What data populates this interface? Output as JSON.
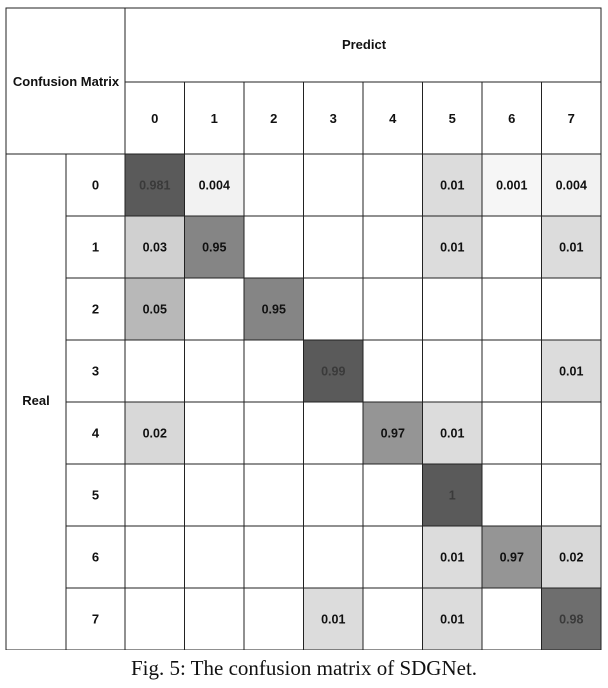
{
  "chart_data": {
    "type": "heatmap",
    "corner_label": "Confusion Matrix",
    "col_group_label": "Predict",
    "row_group_label": "Real",
    "col_labels": [
      "0",
      "1",
      "2",
      "3",
      "4",
      "5",
      "6",
      "7"
    ],
    "row_labels": [
      "0",
      "1",
      "2",
      "3",
      "4",
      "5",
      "6",
      "7"
    ],
    "cells": [
      [
        {
          "r": 0,
          "c": 0,
          "v": "0.981"
        },
        {
          "r": 0,
          "c": 1,
          "v": "0.004"
        },
        {
          "r": 0,
          "c": 5,
          "v": "0.01"
        },
        {
          "r": 0,
          "c": 6,
          "v": "0.001"
        },
        {
          "r": 0,
          "c": 7,
          "v": "0.004"
        }
      ],
      [
        {
          "r": 1,
          "c": 0,
          "v": "0.03"
        },
        {
          "r": 1,
          "c": 1,
          "v": "0.95"
        },
        {
          "r": 1,
          "c": 5,
          "v": "0.01"
        },
        {
          "r": 1,
          "c": 7,
          "v": "0.01"
        }
      ],
      [
        {
          "r": 2,
          "c": 0,
          "v": "0.05"
        },
        {
          "r": 2,
          "c": 2,
          "v": "0.95"
        }
      ],
      [
        {
          "r": 3,
          "c": 3,
          "v": "0.99"
        },
        {
          "r": 3,
          "c": 7,
          "v": "0.01"
        }
      ],
      [
        {
          "r": 4,
          "c": 0,
          "v": "0.02"
        },
        {
          "r": 4,
          "c": 4,
          "v": "0.97"
        },
        {
          "r": 4,
          "c": 5,
          "v": "0.01"
        }
      ],
      [
        {
          "r": 5,
          "c": 5,
          "v": "1"
        }
      ],
      [
        {
          "r": 6,
          "c": 5,
          "v": "0.01"
        },
        {
          "r": 6,
          "c": 6,
          "v": "0.97"
        },
        {
          "r": 6,
          "c": 7,
          "v": "0.02"
        }
      ],
      [
        {
          "r": 7,
          "c": 3,
          "v": "0.01"
        },
        {
          "r": 7,
          "c": 5,
          "v": "0.01"
        },
        {
          "r": 7,
          "c": 7,
          "v": "0.98"
        }
      ]
    ],
    "shading": {
      "0.981": "#5a5a5a",
      "0.99": "#5a5a5a",
      "1": "#5a5a5a",
      "0.98": "#6e6e6e",
      "0.95": "#858585",
      "0.97": "#959595",
      "0.05": "#b8b8b8",
      "0.03": "#d0d0d0",
      "0.02": "#d8d8d8",
      "0.01": "#dcdcdc",
      "0.004": "#f2f2f2",
      "0.001": "#f6f6f6"
    },
    "grid_color": "#222222"
  },
  "caption": "Fig. 5: The confusion matrix of SDGNet."
}
